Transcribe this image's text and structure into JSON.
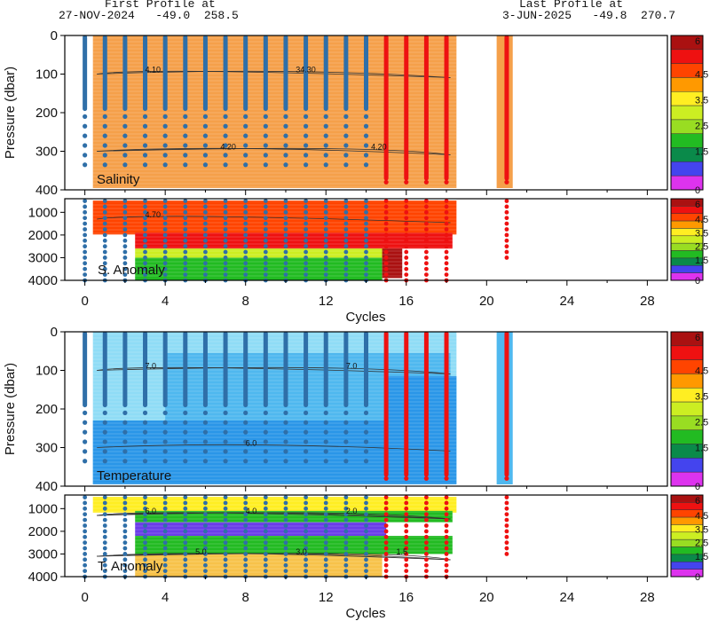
{
  "header": {
    "first_profile_label": "First Profile at",
    "first_profile_value": "27-NOV-2024   -49.0  258.5",
    "last_profile_label": "Last Profile at",
    "last_profile_value": "3-JUN-2025   -49.8  270.7"
  },
  "chart_data": [
    {
      "type": "heatmap",
      "name": "Salinity",
      "label": "Salinity",
      "ylabel": "Pressure (dbar)",
      "ylim": [
        400,
        0
      ],
      "yticks": [
        "0",
        "100",
        "200",
        "300",
        "400"
      ],
      "xlim": [
        -1,
        29
      ],
      "x_present_cycles": [
        0,
        1,
        2,
        3,
        4,
        5,
        6,
        7,
        8,
        9,
        10,
        11,
        12,
        13,
        14,
        15,
        16,
        17,
        18,
        21
      ],
      "contours": [
        "4.10",
        "4.20",
        "34.30",
        "4.20"
      ],
      "colorbar_ticks": [
        "0",
        "1.5",
        "2.5",
        "3.5",
        "4.5",
        "6"
      ]
    },
    {
      "type": "heatmap",
      "name": "S. Anomaly",
      "label": "S. Anomaly",
      "ylim": [
        4000,
        400
      ],
      "yticks": [
        "1000",
        "2000",
        "3000",
        "4000"
      ],
      "contours": [
        "4.70"
      ],
      "colorbar_ticks": [
        "0",
        "1.5",
        "2.5",
        "3.5",
        "4.5",
        "6"
      ]
    },
    {
      "type": "heatmap",
      "name": "Temperature",
      "label": "Temperature",
      "ylabel": "Pressure (dbar)",
      "ylim": [
        400,
        0
      ],
      "yticks": [
        "0",
        "100",
        "200",
        "300",
        "400"
      ],
      "contours": [
        "7.0",
        "6.0",
        "7.0"
      ],
      "colorbar_ticks": [
        "0",
        "1.5",
        "2.5",
        "3.5",
        "4.5",
        "6"
      ]
    },
    {
      "type": "heatmap",
      "name": "T. Anomaly",
      "label": "T. Anomaly",
      "ylim": [
        4000,
        400
      ],
      "yticks": [
        "1000",
        "2000",
        "3000",
        "4000"
      ],
      "contours": [
        "6.0",
        "5.0",
        "4.0",
        "3.0",
        "2.0",
        "1.5"
      ],
      "colorbar_ticks": [
        "0",
        "1.5",
        "2.5",
        "3.5",
        "4.5",
        "6"
      ],
      "xlabel": "Cycles",
      "xticks": [
        "0",
        "4",
        "8",
        "12",
        "16",
        "20",
        "24",
        "28"
      ]
    }
  ],
  "axes": {
    "xlabel": "Cycles",
    "xticks": [
      "0",
      "4",
      "8",
      "12",
      "16",
      "20",
      "24",
      "28"
    ]
  },
  "colors": {
    "salinity_fill": "#f5a04a",
    "temp_light": "#8fdcf6",
    "temp_mid": "#4fb8ef",
    "temp_dark": "#2a96e8",
    "profile_blue": "#2f6fa8",
    "profile_red": "#ee1111"
  }
}
